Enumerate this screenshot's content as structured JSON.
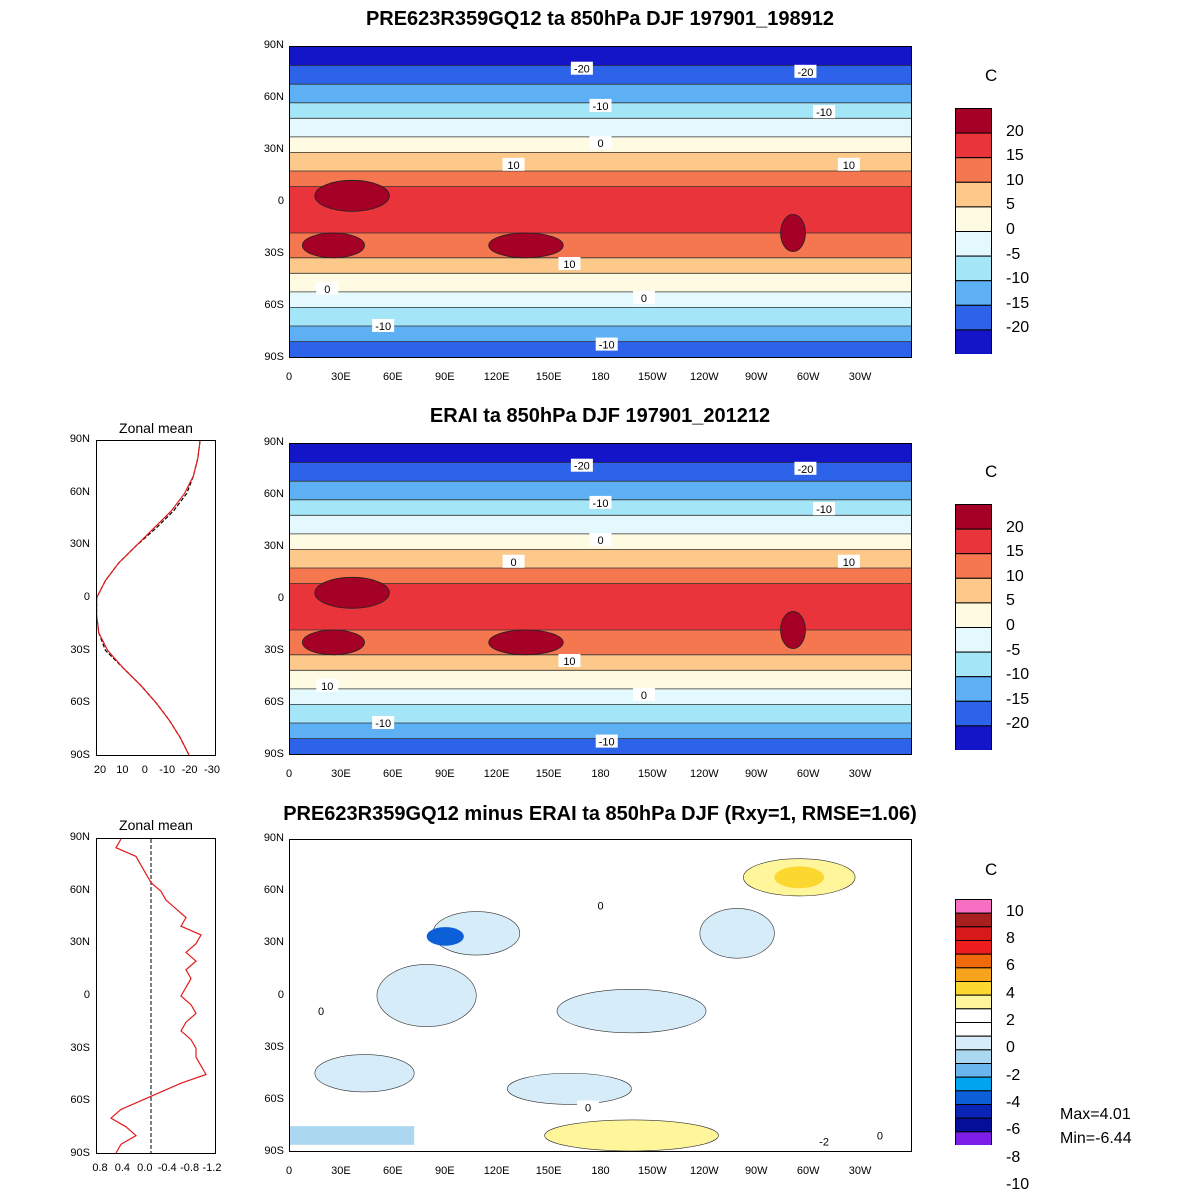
{
  "panels": [
    {
      "id": "model",
      "title": "PRE623R359GQ12 ta 850hPa DJF 197901_198912",
      "unit": "C",
      "levels": [
        "20",
        "15",
        "10",
        "5",
        "0",
        "-5",
        "-10",
        "-15",
        "-20"
      ],
      "colors": [
        "#a50026",
        "#e8343a",
        "#f5774f",
        "#fdc98a",
        "#fffbe2",
        "#e4f9fd",
        "#a4e6f8",
        "#5cb0f3",
        "#2c63e8",
        "#1414c8"
      ],
      "contour_labels": [
        "-20",
        "-20",
        "-10",
        "-10",
        "0",
        "10",
        "10",
        "10",
        "0",
        "0",
        "-10",
        "-10"
      ]
    },
    {
      "id": "obs",
      "title": "ERAI ta 850hPa DJF 197901_201212",
      "unit": "C",
      "levels": [
        "20",
        "15",
        "10",
        "5",
        "0",
        "-5",
        "-10",
        "-15",
        "-20"
      ],
      "colors": [
        "#a50026",
        "#e8343a",
        "#f5774f",
        "#fdc98a",
        "#fffbe2",
        "#e4f9fd",
        "#a4e6f8",
        "#5cb0f3",
        "#2c63e8",
        "#1414c8"
      ],
      "contour_labels": [
        "-20",
        "-20",
        "-10",
        "-10",
        "0",
        "0",
        "10",
        "10",
        "10",
        "0",
        "-10",
        "-10"
      ],
      "zonal_mean_title": "Zonal mean",
      "zonal_mean_xticks": [
        "20",
        "10",
        "0",
        "-10",
        "-20",
        "-30"
      ]
    },
    {
      "id": "diff",
      "title": "PRE623R359GQ12 minus ERAI ta 850hPa DJF (Rxy=1, RMSE=1.06)",
      "unit": "C",
      "levels": [
        "10",
        "8",
        "6",
        "4",
        "2",
        "0",
        "-2",
        "-4",
        "-6",
        "-8",
        "-10"
      ],
      "colors": [
        "#f76fc3",
        "#a71f1f",
        "#d7191c",
        "#ee1d1d",
        "#f06a0d",
        "#f8a31c",
        "#fbd72f",
        "#fff59a",
        "#ffffff",
        "#ffffff",
        "#d6ecf8",
        "#abd8f0",
        "#6bb5ee",
        "#00a5ef",
        "#0d5fd8",
        "#0b24b8",
        "#040f99",
        "#7d1de8"
      ],
      "contour_labels": [
        "0",
        "0",
        "0",
        "0",
        "-2"
      ],
      "zonal_mean_title": "Zonal mean",
      "zonal_mean_xticks": [
        "0.8",
        "0.4",
        "0.0",
        "-0.4",
        "-0.8",
        "-1.2"
      ],
      "stats": {
        "max": "Max=4.01",
        "min": "Min=-6.44"
      }
    }
  ],
  "lat_ticks": [
    "90N",
    "60N",
    "30N",
    "0",
    "30S",
    "60S",
    "90S"
  ],
  "lon_ticks": [
    "0",
    "30E",
    "60E",
    "90E",
    "120E",
    "150E",
    "180",
    "150W",
    "120W",
    "90W",
    "60W",
    "30W"
  ],
  "chart_data": [
    {
      "type": "heatmap",
      "title": "PRE623R359GQ12 ta 850hPa DJF 197901_198912",
      "xlabel": "",
      "ylabel": "",
      "colorbar_unit": "C",
      "colorbar_levels": [
        -20,
        -15,
        -10,
        -5,
        0,
        5,
        10,
        15,
        20
      ],
      "lat": [
        90,
        60,
        30,
        0,
        -30,
        -60,
        -90
      ],
      "zonal_mean_approx": [
        -25,
        -22,
        4,
        23,
        18,
        -2,
        -20
      ]
    },
    {
      "type": "heatmap",
      "title": "ERAI ta 850hPa DJF 197901_201212",
      "xlabel": "",
      "ylabel": "",
      "colorbar_unit": "C",
      "colorbar_levels": [
        -20,
        -15,
        -10,
        -5,
        0,
        5,
        10,
        15,
        20
      ],
      "lat": [
        90,
        60,
        30,
        0,
        -30,
        -60,
        -90
      ],
      "zonal_mean_approx": [
        -25,
        -22,
        4,
        23,
        18,
        -2,
        -20
      ]
    },
    {
      "type": "line",
      "title": "Zonal mean",
      "xlabel": "",
      "ylabel": "",
      "xlim": [
        20,
        -30
      ],
      "ylim": [
        -90,
        90
      ],
      "x_ticks": [
        20,
        10,
        0,
        -10,
        -20,
        -30
      ],
      "series": [
        {
          "lat": [
            90,
            80,
            70,
            60,
            50,
            40,
            30,
            20,
            10,
            0,
            -10,
            -20,
            -30,
            -40,
            -50,
            -60,
            -70,
            -80,
            -90
          ],
          "values": [
            -25,
            -24,
            -22,
            -19,
            -13,
            -5,
            4,
            12,
            18,
            22,
            22,
            21,
            18,
            10,
            2,
            -5,
            -11,
            -16,
            -20
          ]
        },
        {
          "lat": [
            90,
            80,
            70,
            60,
            50,
            40,
            30,
            20,
            10,
            0,
            -10,
            -20,
            -30,
            -40,
            -50,
            -60,
            -70,
            -80,
            -90
          ],
          "values": [
            -25,
            -24,
            -22,
            -18,
            -12,
            -4,
            4,
            12,
            18,
            22,
            22,
            21,
            17,
            10,
            2,
            -5,
            -11,
            -16,
            -20
          ]
        }
      ]
    },
    {
      "type": "heatmap",
      "title": "PRE623R359GQ12 minus ERAI ta 850hPa DJF (Rxy=1, RMSE=1.06)",
      "xlabel": "",
      "ylabel": "",
      "colorbar_unit": "C",
      "colorbar_levels": [
        -10,
        -8,
        -6,
        -4,
        -2,
        0,
        2,
        4,
        6,
        8,
        10
      ],
      "max": 4.01,
      "min": -6.44
    },
    {
      "type": "line",
      "title": "Zonal mean",
      "xlabel": "",
      "ylabel": "",
      "xlim": [
        1.0,
        -1.2
      ],
      "ylim": [
        -90,
        90
      ],
      "x_ticks": [
        0.8,
        0.4,
        0.0,
        -0.4,
        -0.8,
        -1.2
      ],
      "series": [
        {
          "lat": [
            90,
            85,
            80,
            75,
            70,
            65,
            60,
            55,
            50,
            45,
            40,
            35,
            30,
            25,
            20,
            15,
            10,
            5,
            0,
            -5,
            -10,
            -15,
            -20,
            -25,
            -30,
            -35,
            -40,
            -45,
            -50,
            -55,
            -60,
            -65,
            -70,
            -75,
            -80,
            -85,
            -90
          ],
          "values": [
            0.6,
            0.7,
            0.3,
            0.2,
            0.1,
            0.0,
            -0.2,
            -0.3,
            -0.5,
            -0.7,
            -0.6,
            -1.0,
            -0.9,
            -0.7,
            -0.9,
            -0.7,
            -0.8,
            -0.7,
            -0.6,
            -0.8,
            -0.9,
            -0.7,
            -0.6,
            -0.8,
            -0.9,
            -0.9,
            -1.0,
            -1.1,
            -0.6,
            -0.2,
            0.2,
            0.6,
            0.8,
            0.5,
            0.3,
            0.6,
            0.7
          ]
        }
      ]
    }
  ]
}
